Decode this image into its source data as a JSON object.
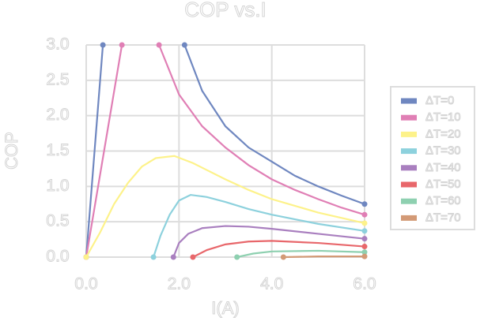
{
  "chart_data": {
    "type": "line",
    "title": "COP vs.I",
    "x_label": "I(A)",
    "y_label": "COP",
    "xlim": [
      0,
      6
    ],
    "ylim": [
      0,
      3
    ],
    "xticks": [
      {
        "value": 0,
        "label": "0.0"
      },
      {
        "value": 2,
        "label": "2.0"
      },
      {
        "value": 4,
        "label": "4.0"
      },
      {
        "value": 6,
        "label": "6.0"
      }
    ],
    "yticks": [
      {
        "value": 0,
        "label": "0.0"
      },
      0.5,
      {
        "value": 1,
        "label": "1.0"
      },
      1.5,
      {
        "value": 2,
        "label": "2.0"
      },
      2.5,
      {
        "value": 3,
        "label": "3.0"
      }
    ],
    "grid": true,
    "legend": "right",
    "series": [
      {
        "name": "ΔT=0",
        "color": "#6f87c0",
        "x": [
          0,
          0.36,
          null,
          2.12,
          2.5,
          3,
          3.5,
          4,
          4.5,
          5,
          5.5,
          6
        ],
        "values": [
          0,
          3.0,
          null,
          3.0,
          2.35,
          1.85,
          1.55,
          1.35,
          1.15,
          1.0,
          0.87,
          0.75
        ]
      },
      {
        "name": "ΔT=10",
        "color": "#e07fb5",
        "x": [
          0,
          0.77,
          null,
          1.57,
          2,
          2.5,
          3,
          3.5,
          4,
          4.5,
          5,
          5.5,
          6
        ],
        "values": [
          0,
          3.0,
          null,
          3.0,
          2.3,
          1.85,
          1.55,
          1.3,
          1.1,
          0.95,
          0.82,
          0.7,
          0.6
        ]
      },
      {
        "name": "ΔT=20",
        "color": "#fdf28a",
        "x": [
          0,
          0.3,
          0.6,
          0.9,
          1.2,
          1.5,
          1.9,
          2.3,
          3,
          3.5,
          4,
          5,
          6
        ],
        "values": [
          0,
          0.35,
          0.75,
          1.05,
          1.28,
          1.4,
          1.43,
          1.33,
          1.1,
          0.95,
          0.82,
          0.63,
          0.48
        ]
      },
      {
        "name": "ΔT=30",
        "color": "#8dd1dd",
        "x": [
          1.45,
          1.6,
          1.8,
          2.0,
          2.25,
          2.6,
          3,
          3.5,
          4,
          5,
          6
        ],
        "values": [
          0,
          0.3,
          0.6,
          0.8,
          0.88,
          0.85,
          0.78,
          0.68,
          0.6,
          0.47,
          0.37
        ]
      },
      {
        "name": "ΔT=40",
        "color": "#a97fbf",
        "x": [
          1.88,
          2.0,
          2.2,
          2.5,
          3,
          3.5,
          4,
          5,
          6
        ],
        "values": [
          0,
          0.2,
          0.33,
          0.41,
          0.44,
          0.43,
          0.4,
          0.33,
          0.26
        ]
      },
      {
        "name": "ΔT=50",
        "color": "#e8676b",
        "x": [
          2.3,
          2.6,
          3,
          3.5,
          4,
          5,
          6
        ],
        "values": [
          0,
          0.1,
          0.18,
          0.22,
          0.23,
          0.2,
          0.15
        ]
      },
      {
        "name": "ΔT=60",
        "color": "#8ed0b0",
        "x": [
          3.25,
          3.6,
          4,
          5,
          6
        ],
        "values": [
          0,
          0.05,
          0.08,
          0.09,
          0.07
        ]
      },
      {
        "name": "ΔT=70",
        "color": "#d39a76",
        "x": [
          4.25,
          5,
          6
        ],
        "values": [
          0,
          0.01,
          0.01
        ]
      }
    ]
  }
}
